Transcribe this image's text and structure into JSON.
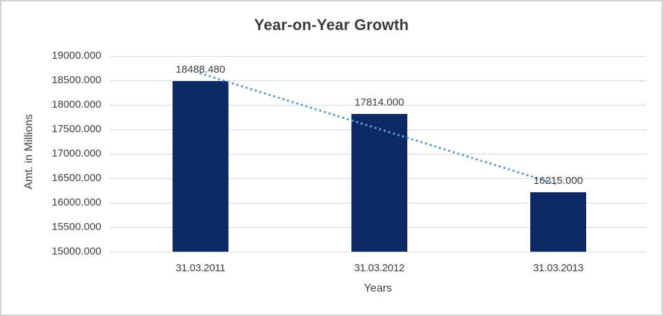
{
  "chart_data": {
    "type": "bar",
    "title": "Year-on-Year Growth",
    "xlabel": "Years",
    "ylabel": "Amt. in Millions",
    "categories": [
      "31.03.2011",
      "31.03.2012",
      "31.03.2013"
    ],
    "values": [
      18488.48,
      17814.0,
      16215.0
    ],
    "data_labels": [
      "18488.480",
      "17814.000",
      "16215.000"
    ],
    "ylim": [
      15000,
      19000
    ],
    "ytick_step": 500,
    "ytick_labels": [
      "19000.000",
      "18500.000",
      "18000.000",
      "17500.000",
      "17000.000",
      "16500.000",
      "16000.000",
      "15500.000",
      "15000.000"
    ],
    "grid": true,
    "legend": "none",
    "trendline": {
      "type": "linear",
      "style": "dotted"
    },
    "colors": {
      "bar": "#0d2a64",
      "trendline": "#5b9bd5",
      "gridline": "#d9d9d9",
      "text": "#404040",
      "title_text": "#3b3b3b",
      "border": "#d2d2d2"
    }
  }
}
